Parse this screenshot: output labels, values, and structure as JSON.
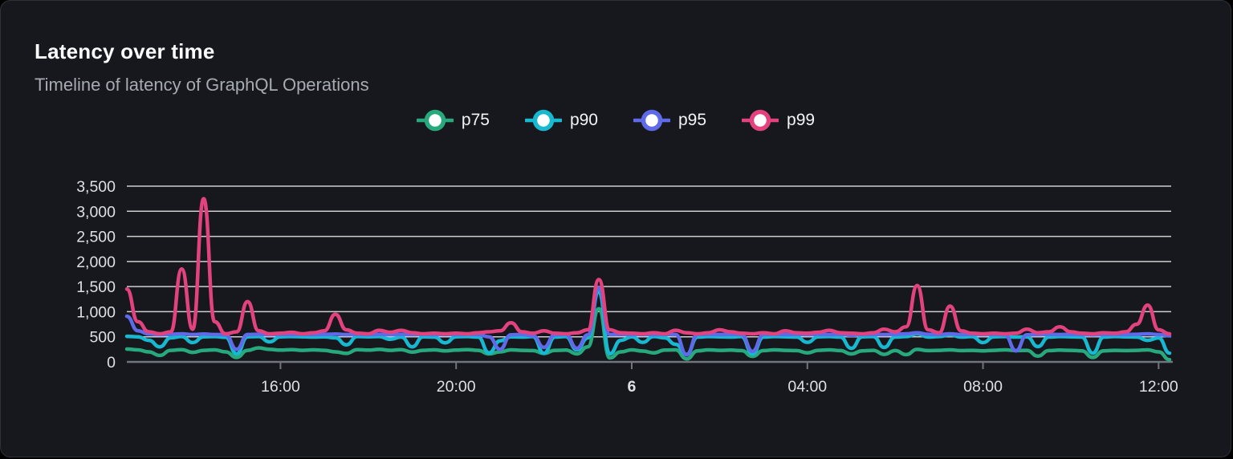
{
  "panel": {
    "title": "Latency over time",
    "subtitle": "Timeline of latency of GraphQL Operations"
  },
  "chart_data": {
    "type": "line",
    "title": "Latency over time",
    "subtitle": "Timeline of latency of GraphQL Operations",
    "legend_position": "top-center",
    "grid": true,
    "ylim": [
      0,
      3500
    ],
    "y_ticks": [
      0,
      500,
      1000,
      1500,
      2000,
      2500,
      3000,
      3500
    ],
    "y_tick_labels": [
      "0",
      "500",
      "1,000",
      "1,500",
      "2,000",
      "2,500",
      "3,000",
      "3,500"
    ],
    "x_point_count": 96,
    "x_ticks": [
      {
        "label": "16:00",
        "index": 14,
        "bold": false
      },
      {
        "label": "20:00",
        "index": 30,
        "bold": false
      },
      {
        "label": "6",
        "index": 46,
        "bold": true
      },
      {
        "label": "04:00",
        "index": 62,
        "bold": false
      },
      {
        "label": "08:00",
        "index": 78,
        "bold": false
      },
      {
        "label": "12:00",
        "index": 94,
        "bold": false
      }
    ],
    "series": [
      {
        "name": "p75",
        "color": "#28a97d",
        "values": [
          255,
          240,
          200,
          130,
          230,
          245,
          190,
          230,
          240,
          200,
          90,
          230,
          280,
          250,
          235,
          245,
          230,
          240,
          230,
          200,
          170,
          245,
          235,
          250,
          230,
          245,
          195,
          230,
          240,
          220,
          235,
          245,
          230,
          160,
          200,
          240,
          230,
          225,
          170,
          230,
          235,
          160,
          300,
          1060,
          80,
          200,
          240,
          215,
          180,
          235,
          240,
          60,
          220,
          240,
          230,
          235,
          225,
          110,
          225,
          240,
          230,
          225,
          180,
          230,
          240,
          225,
          160,
          220,
          230,
          150,
          225,
          145,
          250,
          225,
          230,
          240,
          225,
          230,
          220,
          230,
          240,
          225,
          230,
          115,
          225,
          235,
          230,
          220,
          90,
          220,
          230,
          225,
          230,
          240,
          200,
          45
        ]
      },
      {
        "name": "p90",
        "color": "#17b8d0",
        "values": [
          510,
          500,
          430,
          300,
          480,
          505,
          385,
          500,
          505,
          490,
          160,
          500,
          505,
          400,
          500,
          505,
          500,
          495,
          500,
          480,
          340,
          505,
          500,
          505,
          450,
          495,
          300,
          500,
          495,
          380,
          500,
          505,
          495,
          180,
          420,
          500,
          495,
          505,
          170,
          495,
          505,
          240,
          480,
          1400,
          160,
          430,
          500,
          390,
          505,
          480,
          350,
          150,
          495,
          505,
          500,
          495,
          505,
          160,
          495,
          505,
          500,
          495,
          390,
          500,
          505,
          495,
          270,
          500,
          505,
          290,
          495,
          505,
          560,
          495,
          505,
          540,
          495,
          505,
          385,
          500,
          505,
          495,
          500,
          305,
          495,
          505,
          500,
          495,
          175,
          495,
          505,
          500,
          495,
          430,
          480,
          175
        ]
      },
      {
        "name": "p95",
        "color": "#5f6ae8",
        "values": [
          910,
          620,
          555,
          545,
          550,
          560,
          545,
          555,
          545,
          540,
          250,
          545,
          550,
          545,
          550,
          545,
          550,
          545,
          550,
          555,
          545,
          550,
          545,
          550,
          545,
          550,
          545,
          550,
          545,
          550,
          545,
          550,
          545,
          500,
          250,
          540,
          545,
          520,
          290,
          540,
          545,
          270,
          540,
          1470,
          545,
          550,
          545,
          550,
          545,
          550,
          545,
          140,
          545,
          550,
          545,
          550,
          545,
          210,
          545,
          550,
          545,
          550,
          545,
          550,
          545,
          550,
          530,
          545,
          550,
          545,
          550,
          560,
          580,
          550,
          545,
          560,
          545,
          550,
          545,
          550,
          540,
          220,
          540,
          545,
          550,
          545,
          550,
          545,
          540,
          545,
          550,
          545,
          550,
          560,
          545,
          520
        ]
      },
      {
        "name": "p99",
        "color": "#e2437e",
        "values": [
          1450,
          800,
          600,
          560,
          600,
          1850,
          650,
          3250,
          800,
          560,
          600,
          1200,
          620,
          560,
          570,
          590,
          560,
          580,
          620,
          950,
          640,
          570,
          560,
          630,
          590,
          630,
          580,
          560,
          570,
          560,
          570,
          560,
          580,
          600,
          620,
          780,
          600,
          570,
          620,
          570,
          560,
          580,
          640,
          1640,
          640,
          580,
          570,
          560,
          580,
          560,
          630,
          580,
          560,
          580,
          640,
          600,
          570,
          560,
          580,
          560,
          620,
          580,
          570,
          590,
          630,
          580,
          570,
          560,
          580,
          650,
          600,
          700,
          1520,
          640,
          580,
          1110,
          620,
          570,
          560,
          570,
          560,
          570,
          650,
          580,
          600,
          700,
          600,
          570,
          560,
          580,
          570,
          600,
          750,
          1130,
          640,
          560
        ]
      }
    ]
  },
  "colors": {
    "panel_background": "#16181d",
    "panel_border": "#2e3238",
    "gridline": "#eceef0",
    "axis_line": "#70757d",
    "axis_text": "#dde0e4",
    "title_text": "#fafbfc",
    "subtitle_text": "#a6abb2"
  }
}
